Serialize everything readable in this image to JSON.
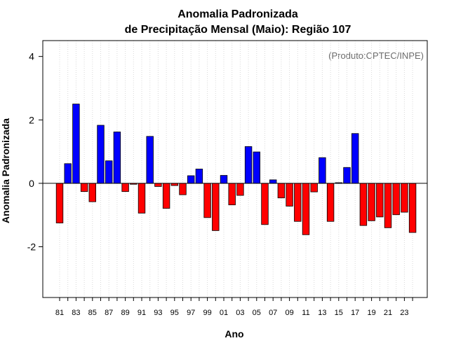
{
  "chart_data": {
    "type": "bar",
    "title": "Anomalia Padronizada",
    "subtitle": "de Precipitação Mensal (Maio): Região 107",
    "xlabel": "Ano",
    "ylabel": "Anomalia Padronizada",
    "credit": "(Produto:CPTEC/INPE)",
    "ylim": [
      -3.6,
      4.5
    ],
    "yticks": [
      -2,
      0,
      2,
      4
    ],
    "ytick_labels": [
      "-2",
      "0",
      "2",
      "4"
    ],
    "grid": "vertical dotted",
    "colors": {
      "positive": "#0000ff",
      "negative": "#ff0000",
      "baseline": "#000000",
      "grid": "#d9d9d9"
    },
    "categories": [
      "81",
      "82",
      "83",
      "84",
      "85",
      "86",
      "87",
      "88",
      "89",
      "90",
      "91",
      "92",
      "93",
      "94",
      "95",
      "96",
      "97",
      "98",
      "99",
      "00",
      "01",
      "02",
      "03",
      "04",
      "05",
      "06",
      "07",
      "08",
      "09",
      "10",
      "11",
      "12",
      "13",
      "14",
      "15",
      "16",
      "17",
      "18",
      "19",
      "20",
      "21",
      "22",
      "23",
      "24"
    ],
    "tick_labels": [
      "81",
      "83",
      "85",
      "87",
      "89",
      "91",
      "93",
      "95",
      "97",
      "99",
      "01",
      "03",
      "05",
      "07",
      "09",
      "11",
      "13",
      "15",
      "17",
      "19",
      "21",
      "23"
    ],
    "values": [
      -1.25,
      0.62,
      2.5,
      -0.26,
      -0.58,
      1.83,
      0.71,
      1.62,
      -0.26,
      -0.03,
      -0.94,
      1.48,
      -0.1,
      -0.79,
      -0.07,
      -0.36,
      0.24,
      0.45,
      -1.08,
      -1.49,
      0.25,
      -0.68,
      -0.38,
      1.16,
      0.99,
      -1.3,
      0.11,
      -0.46,
      -0.72,
      -1.2,
      -1.62,
      -0.27,
      0.81,
      -1.2,
      0.02,
      0.5,
      1.57,
      -1.33,
      -1.18,
      -1.06,
      -1.4,
      -0.99,
      -0.91,
      -1.55
    ]
  }
}
